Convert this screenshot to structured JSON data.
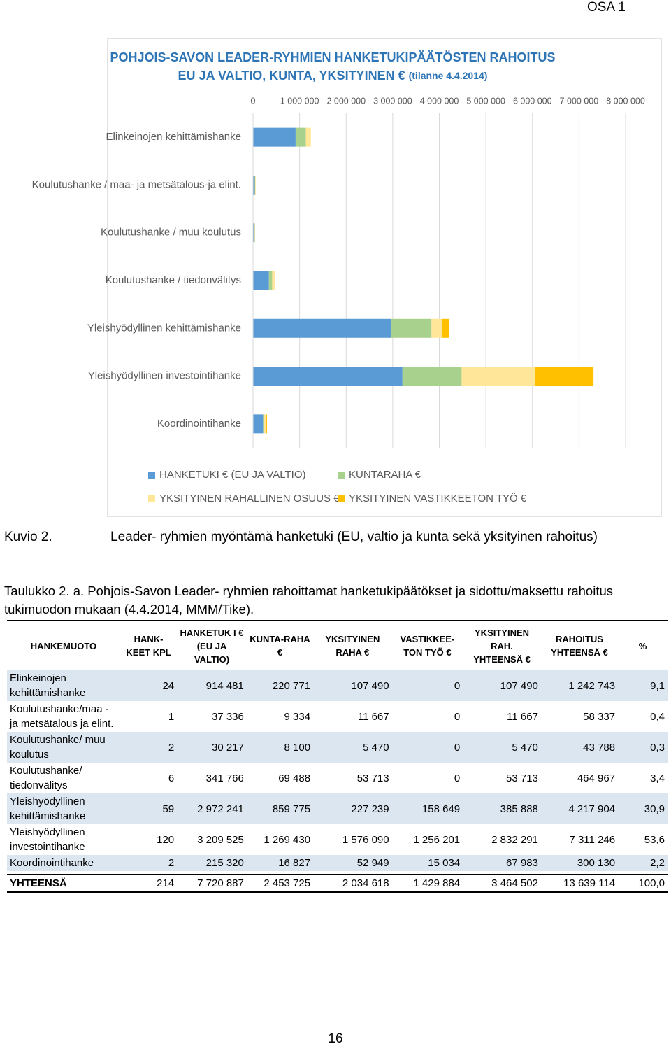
{
  "header": {
    "section": "OSA 1"
  },
  "chart_data": {
    "type": "bar",
    "orientation": "horizontal",
    "stacked": true,
    "title": "POHJOIS-SAVON LEADER-RYHMIEN HANKETUKIPÄÄTÖSTEN RAHOITUS",
    "subtitle": "EU JA VALTIO, KUNTA, YKSITYINEN €",
    "date_note": "(tilanne 4.4.2014)",
    "categories": [
      "Elinkeinojen kehittämishanke",
      "Koulutushanke / maa- ja metsätalous-ja elint.",
      "Koulutushanke / muu koulutus",
      "Koulutushanke / tiedonvälitys",
      "Yleishyödyllinen kehittämishanke",
      "Yleishyödyllinen investointihanke",
      "Koordinointihanke"
    ],
    "series": [
      {
        "name": "HANKETUKI € (EU JA VALTIO)",
        "color": "#5b9bd5",
        "values": [
          914481,
          37336,
          30217,
          341766,
          2972241,
          3209525,
          215320
        ]
      },
      {
        "name": "KUNTARAHA €",
        "color": "#a9d18e",
        "values": [
          220771,
          9334,
          8100,
          69488,
          859775,
          1269430,
          16827
        ]
      },
      {
        "name": "YKSITYINEN RAHALLINEN OSUUS €",
        "color": "#ffe699",
        "values": [
          107490,
          11667,
          5470,
          53713,
          227239,
          1576090,
          52949
        ]
      },
      {
        "name": "YKSITYINEN VASTIKKEETON TYÖ €",
        "color": "#ffc000",
        "values": [
          0,
          0,
          0,
          0,
          158649,
          1256201,
          15034
        ]
      }
    ],
    "xlim": [
      0,
      8000000
    ],
    "xticks": [
      0,
      {
        "value": 1000000,
        "label": "1 000 000"
      },
      {
        "value": 2000000,
        "label": "2 000 000"
      },
      {
        "value": 3000000,
        "label": "3 000 000"
      },
      {
        "value": 4000000,
        "label": "4 000 000"
      },
      {
        "value": 5000000,
        "label": "5 000 000"
      },
      {
        "value": 6000000,
        "label": "6 000 000"
      },
      {
        "value": 7000000,
        "label": "7 000 000"
      },
      {
        "value": 8000000,
        "label": "8 000 000"
      }
    ],
    "grid": true,
    "legend": "bottom"
  },
  "figure_caption": {
    "label": "Kuvio 2.",
    "text": "Leader- ryhmien myöntämä hanketuki (EU, valtio ja kunta sekä yksityinen rahoitus)"
  },
  "table": {
    "caption": "Taulukko 2. a. Pohjois-Savon Leader- ryhmien rahoittamat hanketukipäätökset ja sidottu/maksettu rahoitus tukimuodon mukaan (4.4.2014, MMM/Tike).",
    "columns": [
      "HANKEMUOTO",
      "HANK-KEET KPL",
      "HANKETUK I € (EU JA VALTIO)",
      "KUNTA-RAHA €",
      "YKSITYINEN RAHA €",
      "VASTIKKEE-TON TYÖ €",
      "YKSITYINEN RAH. YHTEENSÄ €",
      "RAHOITUS YHTEENSÄ €",
      "%"
    ],
    "rows": [
      [
        "Elinkeinojen kehittämishanke",
        "24",
        "914 481",
        "220 771",
        "107 490",
        "0",
        "107 490",
        "1 242 743",
        "9,1"
      ],
      [
        "Koulutushanke/maa - ja metsätalous ja elint.",
        "1",
        "37 336",
        "9 334",
        "11 667",
        "0",
        "11 667",
        "58 337",
        "0,4"
      ],
      [
        "Koulutushanke/ muu koulutus",
        "2",
        "30 217",
        "8 100",
        "5 470",
        "0",
        "5 470",
        "43 788",
        "0,3"
      ],
      [
        "Koulutushanke/ tiedonvälitys",
        "6",
        "341 766",
        "69 488",
        "53 713",
        "0",
        "53 713",
        "464 967",
        "3,4"
      ],
      [
        "Yleishyödyllinen kehittämishanke",
        "59",
        "2 972 241",
        "859 775",
        "227 239",
        "158 649",
        "385 888",
        "4 217 904",
        "30,9"
      ],
      [
        "Yleishyödyllinen investointihanke",
        "120",
        "3 209 525",
        "1 269 430",
        "1 576 090",
        "1 256 201",
        "2 832 291",
        "7 311 246",
        "53,6"
      ],
      [
        "Koordinointihanke",
        "2",
        "215 320",
        "16 827",
        "52 949",
        "15 034",
        "67 983",
        "300 130",
        "2,2"
      ]
    ],
    "total": [
      "YHTEENSÄ",
      "214",
      "7 720 887",
      "2 453 725",
      "2 034 618",
      "1 429 884",
      "3 464 502",
      "13 639 114",
      "100,0"
    ]
  },
  "footer": {
    "page_number": "16"
  }
}
